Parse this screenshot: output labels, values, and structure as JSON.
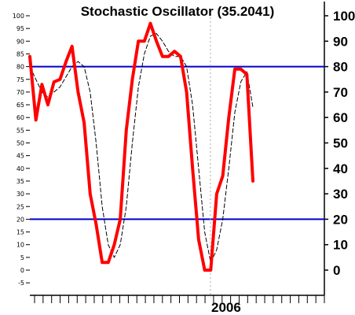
{
  "chart_data": {
    "type": "line",
    "title": "Stochastic Oscillator (35.2041)",
    "ylim": [
      -10,
      107
    ],
    "left_ticks": [
      100,
      95,
      90,
      85,
      80,
      75,
      70,
      65,
      60,
      55,
      50,
      45,
      40,
      35,
      30,
      25,
      20,
      15,
      10,
      5,
      0,
      -5
    ],
    "right_ticks": [
      100,
      90,
      80,
      70,
      60,
      50,
      40,
      30,
      20,
      10,
      0
    ],
    "reference_lines": [
      80,
      20
    ],
    "x_tick_count": 35,
    "x_label": {
      "text": "2006",
      "index": 21
    },
    "series": [
      {
        "values": [
          84,
          59,
          73,
          65,
          74,
          75,
          82,
          88,
          70,
          58,
          30,
          18,
          3,
          3,
          10,
          20,
          55,
          75,
          90,
          90,
          97,
          90,
          84,
          84,
          86,
          84,
          70,
          40,
          12,
          0,
          0,
          30,
          37,
          60,
          79,
          79,
          77,
          35
        ],
        "color": "#ff0000",
        "style": "solid-thick"
      },
      {
        "values": [
          80,
          75,
          70,
          68,
          70,
          72,
          76,
          80,
          82,
          80,
          70,
          50,
          25,
          10,
          5,
          10,
          25,
          50,
          72,
          85,
          92,
          93,
          90,
          86,
          84,
          84,
          80,
          65,
          40,
          15,
          3,
          8,
          20,
          40,
          62,
          74,
          78,
          64
        ],
        "color": "#000000",
        "style": "dashed-thin"
      }
    ],
    "grid": false
  }
}
